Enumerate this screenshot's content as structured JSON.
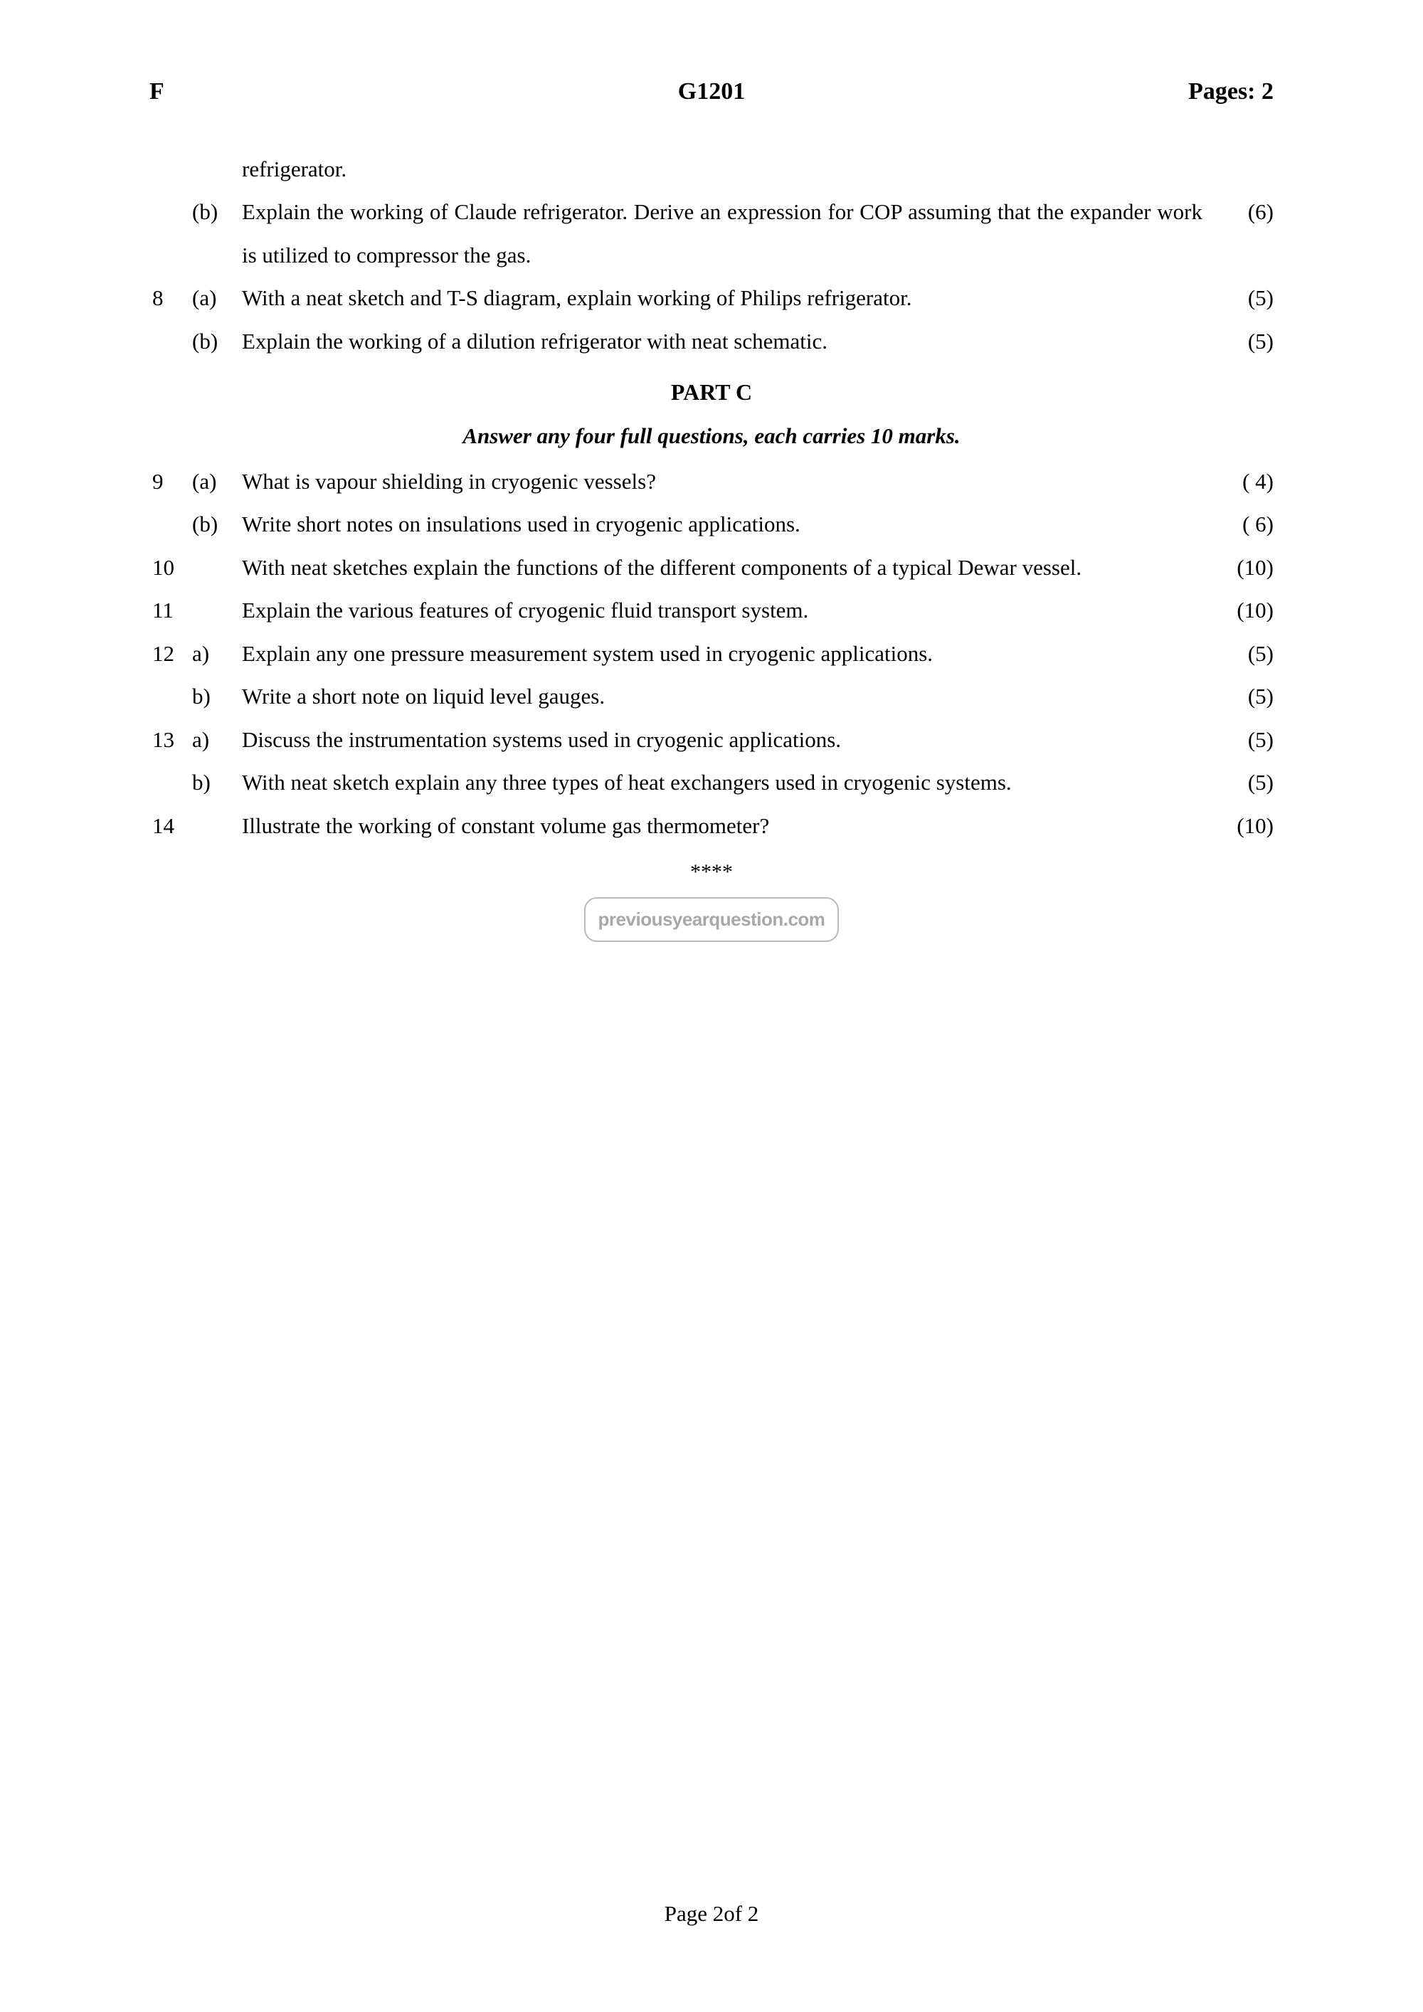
{
  "header": {
    "left": "F",
    "center": "G1201",
    "right": "Pages: 2"
  },
  "partC": {
    "title": "PART C",
    "subtitle": "Answer any four full questions, each carries 10 marks."
  },
  "questions": [
    {
      "num": "",
      "sub": "",
      "text": "refrigerator.",
      "marks": ""
    },
    {
      "num": "",
      "sub": "(b)",
      "text": "Explain the working of Claude refrigerator. Derive an expression for COP assuming that the expander work is utilized to compressor the gas.",
      "marks": "(6)"
    },
    {
      "num": "8",
      "sub": "(a)",
      "text": "With a neat sketch and T-S diagram, explain working of Philips refrigerator.",
      "marks": "(5)"
    },
    {
      "num": "",
      "sub": "(b)",
      "text": "Explain the working of a dilution refrigerator with neat schematic.",
      "marks": "(5)"
    }
  ],
  "questionsC": [
    {
      "num": "9",
      "sub": "(a)",
      "text": "What is vapour shielding in cryogenic vessels?",
      "marks": "( 4)"
    },
    {
      "num": "",
      "sub": "(b)",
      "text": "Write short notes on insulations used in cryogenic applications.",
      "marks": "( 6)"
    },
    {
      "num": "10",
      "sub": "",
      "text": "With neat sketches explain the functions of the different components of a typical Dewar vessel.",
      "marks": "(10)"
    },
    {
      "num": "11",
      "sub": "",
      "text": "Explain the various features of cryogenic fluid transport system.",
      "marks": "(10)"
    },
    {
      "num": "12",
      "sub": "a)",
      "text": "Explain any one pressure measurement system used in cryogenic applications.",
      "marks": "(5)"
    },
    {
      "num": "",
      "sub": "b)",
      "text": "Write a short note on liquid level gauges.",
      "marks": "(5)"
    },
    {
      "num": "13",
      "sub": "a)",
      "text": "Discuss the instrumentation systems used in cryogenic applications.",
      "marks": "(5)"
    },
    {
      "num": "",
      "sub": "b)",
      "text": "With neat sketch explain any three types of heat exchangers used in cryogenic systems.",
      "marks": "(5)"
    },
    {
      "num": "14",
      "sub": "",
      "text": "Illustrate the working of constant volume gas thermometer?",
      "marks": "(10)"
    }
  ],
  "endStars": "****",
  "watermark": "previousyearquestion.com",
  "footer": "Page 2of 2"
}
